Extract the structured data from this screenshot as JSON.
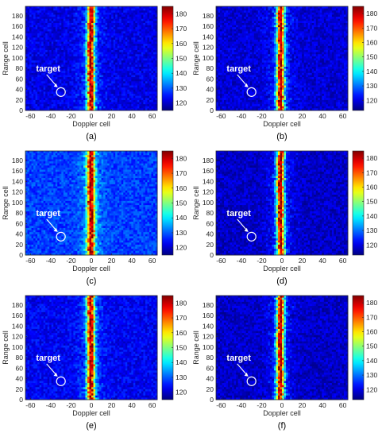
{
  "panel_letters": [
    "(a)",
    "(b)",
    "(c)",
    "(d)",
    "(e)",
    "(f)"
  ],
  "chart_data": [
    {
      "type": "heatmap",
      "panel": "(a)",
      "xlabel": "Doppler cell",
      "ylabel": "Range cell",
      "xlim": [
        -65,
        65
      ],
      "ylim": [
        0,
        198
      ],
      "xticks": [
        -60,
        -40,
        -20,
        0,
        20,
        40,
        60
      ],
      "yticks": [
        0,
        20,
        40,
        60,
        80,
        100,
        120,
        140,
        160,
        180
      ],
      "colorbar": {
        "range": [
          115,
          185
        ],
        "ticks": [
          120,
          130,
          140,
          150,
          160,
          170,
          180
        ]
      },
      "colormap": "jet",
      "clutter_ridge_doppler": [
        -4,
        3
      ],
      "background_level": 122,
      "ridge_level": 182,
      "annotation": {
        "text": "target",
        "x": -30,
        "y": 35
      }
    },
    {
      "type": "heatmap",
      "panel": "(b)",
      "xlabel": "Doppler cell",
      "ylabel": "Range cell",
      "xlim": [
        -65,
        65
      ],
      "ylim": [
        0,
        198
      ],
      "xticks": [
        -60,
        -40,
        -20,
        0,
        20,
        40,
        60
      ],
      "yticks": [
        0,
        20,
        40,
        60,
        80,
        100,
        120,
        140,
        160,
        180
      ],
      "colorbar": {
        "range": [
          113,
          185
        ],
        "ticks": [
          120,
          130,
          140,
          150,
          160,
          170,
          180
        ]
      },
      "colormap": "jet",
      "clutter_ridge_doppler": [
        -5,
        2
      ],
      "background_level": 119,
      "ridge_level": 181,
      "annotation": {
        "text": "target",
        "x": -30,
        "y": 35
      }
    },
    {
      "type": "heatmap",
      "panel": "(c)",
      "xlabel": "Doppler cell",
      "ylabel": "Range cell",
      "xlim": [
        -65,
        65
      ],
      "ylim": [
        0,
        198
      ],
      "xticks": [
        -60,
        -40,
        -20,
        0,
        20,
        40,
        60
      ],
      "yticks": [
        0,
        20,
        40,
        60,
        80,
        100,
        120,
        140,
        160,
        180
      ],
      "colorbar": {
        "range": [
          115,
          185
        ],
        "ticks": [
          120,
          130,
          140,
          150,
          160,
          170,
          180
        ]
      },
      "colormap": "jet",
      "clutter_ridge_doppler": [
        -4,
        3
      ],
      "background_level": 128,
      "ridge_level": 182,
      "annotation": {
        "text": "target",
        "x": -30,
        "y": 35
      }
    },
    {
      "type": "heatmap",
      "panel": "(d)",
      "xlabel": "Doppler cell",
      "ylabel": "Range cell",
      "xlim": [
        -65,
        65
      ],
      "ylim": [
        0,
        198
      ],
      "xticks": [
        -60,
        -40,
        -20,
        0,
        20,
        40,
        60
      ],
      "yticks": [
        0,
        20,
        40,
        60,
        80,
        100,
        120,
        140,
        160,
        180
      ],
      "colorbar": {
        "range": [
          113,
          185
        ],
        "ticks": [
          120,
          130,
          140,
          150,
          160,
          170,
          180
        ]
      },
      "colormap": "jet",
      "clutter_ridge_doppler": [
        -5,
        2
      ],
      "background_level": 118,
      "ridge_level": 180,
      "annotation": {
        "text": "target",
        "x": -30,
        "y": 35
      }
    },
    {
      "type": "heatmap",
      "panel": "(e)",
      "xlabel": "Doppler cell",
      "ylabel": "Range cell",
      "xlim": [
        -65,
        65
      ],
      "ylim": [
        0,
        198
      ],
      "xticks": [
        -60,
        -40,
        -20,
        0,
        20,
        40,
        60
      ],
      "yticks": [
        0,
        20,
        40,
        60,
        80,
        100,
        120,
        140,
        160,
        180
      ],
      "colorbar": {
        "range": [
          115,
          185
        ],
        "ticks": [
          120,
          130,
          140,
          150,
          160,
          170,
          180
        ]
      },
      "colormap": "jet",
      "clutter_ridge_doppler": [
        -4,
        3
      ],
      "background_level": 123,
      "ridge_level": 182,
      "annotation": {
        "text": "target",
        "x": -30,
        "y": 35
      }
    },
    {
      "type": "heatmap",
      "panel": "(f)",
      "xlabel": "Doppler cell",
      "ylabel": "Range cell",
      "xlim": [
        -65,
        65
      ],
      "ylim": [
        0,
        198
      ],
      "xticks": [
        -60,
        -40,
        -20,
        0,
        20,
        40,
        60
      ],
      "yticks": [
        0,
        20,
        40,
        60,
        80,
        100,
        120,
        140,
        160,
        180
      ],
      "colorbar": {
        "range": [
          113,
          185
        ],
        "ticks": [
          120,
          130,
          140,
          150,
          160,
          170,
          180
        ]
      },
      "colormap": "jet",
      "clutter_ridge_doppler": [
        -5,
        2
      ],
      "background_level": 118,
      "ridge_level": 180,
      "annotation": {
        "text": "target",
        "x": -30,
        "y": 35
      }
    }
  ]
}
